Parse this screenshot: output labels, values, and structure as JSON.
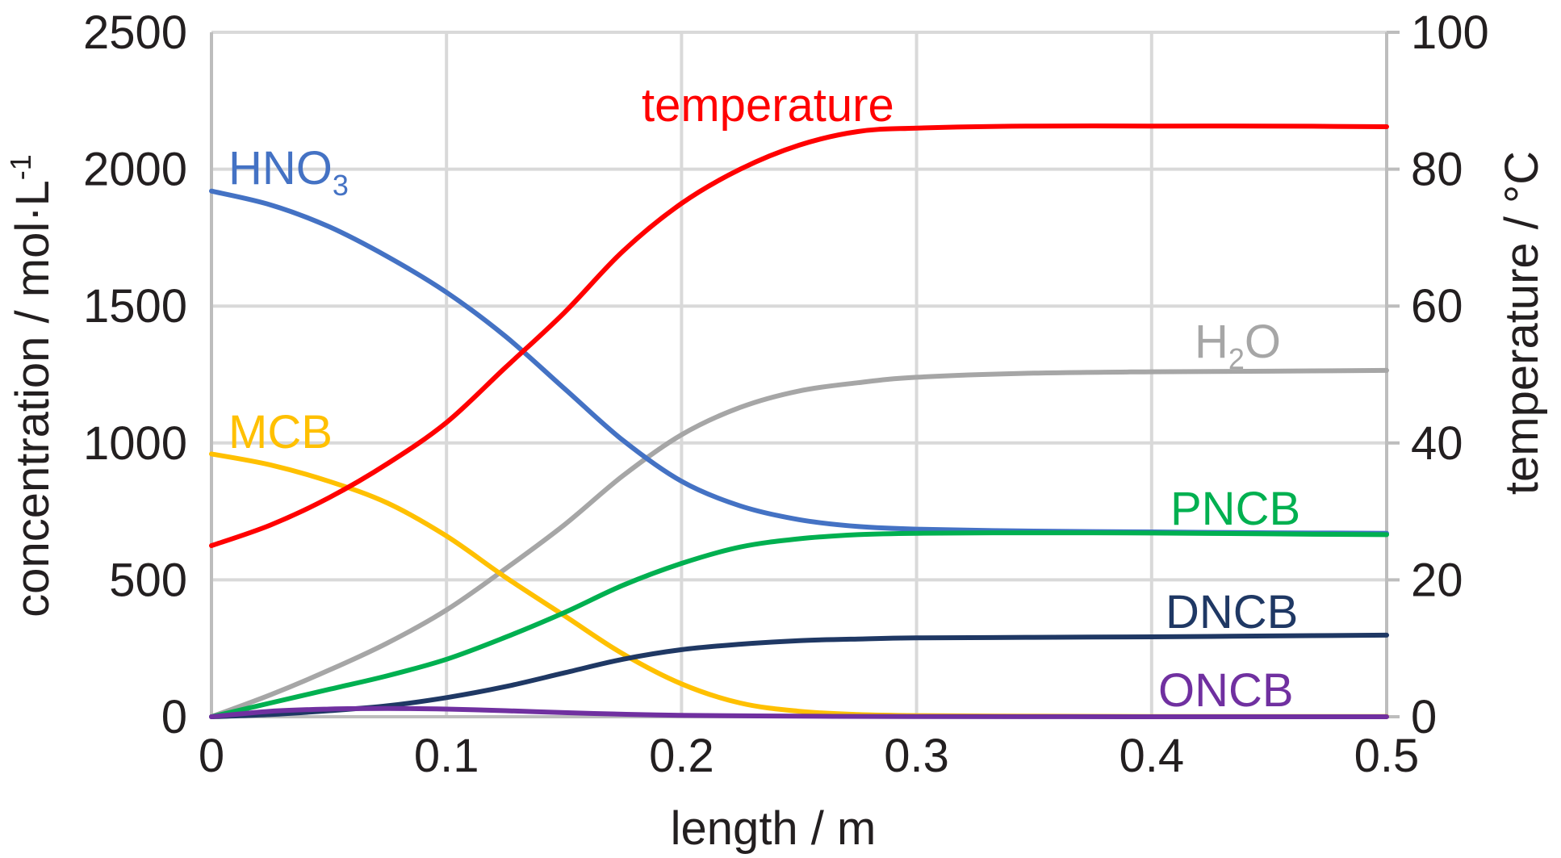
{
  "chart_data": {
    "type": "line",
    "title": "",
    "xlabel": "length / m",
    "ylabel": "concentration / mol·L",
    "ylabel_sup": "-1",
    "y2label": "temperature / °C",
    "xlim": [
      0,
      0.5
    ],
    "ylim": [
      0,
      2500
    ],
    "y2lim": [
      0,
      100
    ],
    "x_ticks": [
      "0",
      "0.1",
      "0.2",
      "0.3",
      "0.4",
      "0.5"
    ],
    "y_ticks": [
      "0",
      "500",
      "1000",
      "1500",
      "2000",
      "2500"
    ],
    "y2_ticks": [
      "0",
      "20",
      "40",
      "60",
      "80",
      "100"
    ],
    "grid": true,
    "legend": "none (inline series labels)",
    "series": [
      {
        "name": "HNO3",
        "label_main": "HNO",
        "label_sub": "3",
        "axis": "left",
        "color": "#4472c4",
        "x": [
          0,
          0.025,
          0.05,
          0.075,
          0.1,
          0.125,
          0.15,
          0.175,
          0.2,
          0.225,
          0.25,
          0.275,
          0.3,
          0.35,
          0.4,
          0.45,
          0.5
        ],
        "y": [
          1920,
          1870,
          1790,
          1680,
          1550,
          1390,
          1200,
          1010,
          860,
          770,
          720,
          695,
          685,
          678,
          675,
          672,
          670
        ]
      },
      {
        "name": "MCB",
        "label_main": "MCB",
        "label_sub": "",
        "axis": "left",
        "color": "#ffc000",
        "x": [
          0,
          0.025,
          0.05,
          0.075,
          0.1,
          0.125,
          0.15,
          0.175,
          0.2,
          0.225,
          0.25,
          0.275,
          0.3,
          0.35,
          0.4,
          0.45,
          0.5
        ],
        "y": [
          960,
          920,
          860,
          780,
          660,
          510,
          370,
          230,
          120,
          50,
          20,
          8,
          4,
          2,
          1,
          1,
          1
        ]
      },
      {
        "name": "temperature",
        "label_main": "temperature",
        "label_sub": "",
        "axis": "right",
        "color": "#ff0000",
        "x": [
          0,
          0.025,
          0.05,
          0.075,
          0.1,
          0.125,
          0.15,
          0.175,
          0.2,
          0.225,
          0.25,
          0.275,
          0.3,
          0.35,
          0.4,
          0.45,
          0.5
        ],
        "y": [
          25,
          28,
          32,
          37,
          43,
          51,
          59,
          68,
          75,
          80,
          83.5,
          85.5,
          86,
          86.3,
          86.3,
          86.3,
          86.2
        ]
      },
      {
        "name": "H2O",
        "label_main": "H",
        "label_sub": "2",
        "label_after": "O",
        "axis": "left",
        "color": "#a6a6a6",
        "x": [
          0,
          0.025,
          0.05,
          0.075,
          0.1,
          0.125,
          0.15,
          0.175,
          0.2,
          0.225,
          0.25,
          0.275,
          0.3,
          0.35,
          0.4,
          0.45,
          0.5
        ],
        "y": [
          0,
          80,
          170,
          270,
          390,
          540,
          700,
          880,
          1030,
          1130,
          1190,
          1220,
          1240,
          1255,
          1260,
          1262,
          1265
        ]
      },
      {
        "name": "PNCB",
        "label_main": "PNCB",
        "label_sub": "",
        "axis": "left",
        "color": "#00b050",
        "x": [
          0,
          0.025,
          0.05,
          0.075,
          0.1,
          0.125,
          0.15,
          0.175,
          0.2,
          0.225,
          0.25,
          0.275,
          0.3,
          0.35,
          0.4,
          0.45,
          0.5
        ],
        "y": [
          0,
          50,
          100,
          150,
          210,
          290,
          380,
          480,
          560,
          620,
          650,
          665,
          670,
          672,
          671,
          668,
          665
        ]
      },
      {
        "name": "DNCB",
        "label_main": "DNCB",
        "label_sub": "",
        "axis": "left",
        "color": "#1f3864",
        "x": [
          0,
          0.025,
          0.05,
          0.075,
          0.1,
          0.125,
          0.15,
          0.175,
          0.2,
          0.225,
          0.25,
          0.275,
          0.3,
          0.35,
          0.4,
          0.45,
          0.5
        ],
        "y": [
          0,
          8,
          22,
          40,
          70,
          110,
          160,
          210,
          245,
          265,
          278,
          284,
          288,
          290,
          292,
          295,
          298
        ]
      },
      {
        "name": "ONCB",
        "label_main": "ONCB",
        "label_sub": "",
        "axis": "left",
        "color": "#7030a0",
        "x": [
          0,
          0.025,
          0.05,
          0.075,
          0.1,
          0.125,
          0.15,
          0.175,
          0.2,
          0.25,
          0.3,
          0.4,
          0.5
        ],
        "y": [
          0,
          20,
          28,
          30,
          28,
          22,
          15,
          9,
          5,
          2,
          1,
          0,
          0
        ]
      }
    ]
  }
}
